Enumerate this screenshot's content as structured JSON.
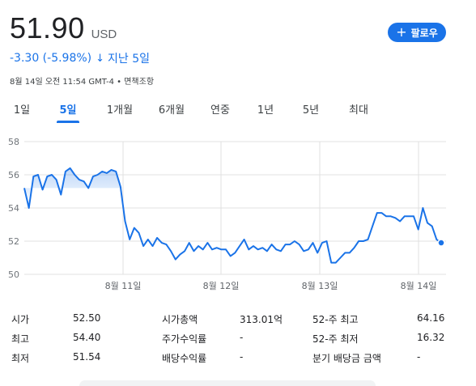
{
  "quote": {
    "price": "51.90",
    "currency": "USD",
    "change": "-3.30 (-5.98%)",
    "arrow": "↓",
    "period": "지난 5일",
    "timestamp": "8월 14일 오전 11:54 GMT-4 • 면책조항"
  },
  "follow_button": {
    "label": "팔로우",
    "icon": "plus-icon"
  },
  "tabs": [
    {
      "label": "1일"
    },
    {
      "label": "5일",
      "active": true
    },
    {
      "label": "1개월"
    },
    {
      "label": "6개월"
    },
    {
      "label": "연중"
    },
    {
      "label": "1년"
    },
    {
      "label": "5년"
    },
    {
      "label": "최대"
    }
  ],
  "colors": {
    "accent": "#1a73e8",
    "line": "#1a73e8",
    "grid": "#e0e0e0"
  },
  "chart_data": {
    "type": "area",
    "ylim": [
      50,
      58
    ],
    "yticks": [
      "58",
      "56",
      "54",
      "52",
      "50"
    ],
    "xlabels": [
      "8월 11일",
      "8월 12일",
      "8월 13일",
      "8월 14일"
    ],
    "grid": true,
    "series": [
      {
        "values": [
          55.2,
          54.0,
          55.9,
          56.0,
          55.1,
          55.9,
          56.0,
          55.7,
          54.8,
          56.2,
          56.4,
          56.0,
          55.7,
          55.6,
          55.2,
          55.9,
          56.0,
          56.2,
          56.1,
          56.3,
          56.2,
          55.3,
          53.2,
          52.1,
          52.8,
          52.5,
          51.7,
          52.1,
          51.7,
          52.2,
          51.9,
          51.8,
          51.4,
          50.9,
          51.2,
          51.4,
          51.9,
          51.4,
          51.7,
          51.5,
          51.9,
          51.5,
          51.6,
          51.5,
          51.5,
          51.1,
          51.3,
          51.7,
          52.1,
          51.5,
          51.7,
          51.5,
          51.6,
          51.4,
          51.8,
          51.5,
          51.4,
          51.8,
          51.8,
          52.0,
          51.8,
          51.4,
          51.5,
          51.9,
          51.3,
          51.9,
          52.0,
          50.7,
          50.7,
          51.0,
          51.3,
          51.3,
          51.6,
          52.0,
          52.0,
          52.1,
          52.9,
          53.7,
          53.7,
          53.5,
          53.5,
          53.4,
          53.2,
          53.5,
          53.5,
          53.5,
          52.7,
          54.0,
          53.1,
          52.9,
          52.1,
          51.9
        ]
      }
    ],
    "last_value": 51.9
  },
  "stats": [
    {
      "label": "시가",
      "value": "52.50"
    },
    {
      "label": "시가총액",
      "value": "313.01억"
    },
    {
      "label": "52-주 최고",
      "value": "64.16"
    },
    {
      "label": "최고",
      "value": "54.40"
    },
    {
      "label": "주가수익률",
      "value": "-"
    },
    {
      "label": "52-주 최저",
      "value": "16.32"
    },
    {
      "label": "최저",
      "value": "51.54"
    },
    {
      "label": "배당수익률",
      "value": "-"
    },
    {
      "label": "분기 배당금 금액",
      "value": "-"
    }
  ]
}
